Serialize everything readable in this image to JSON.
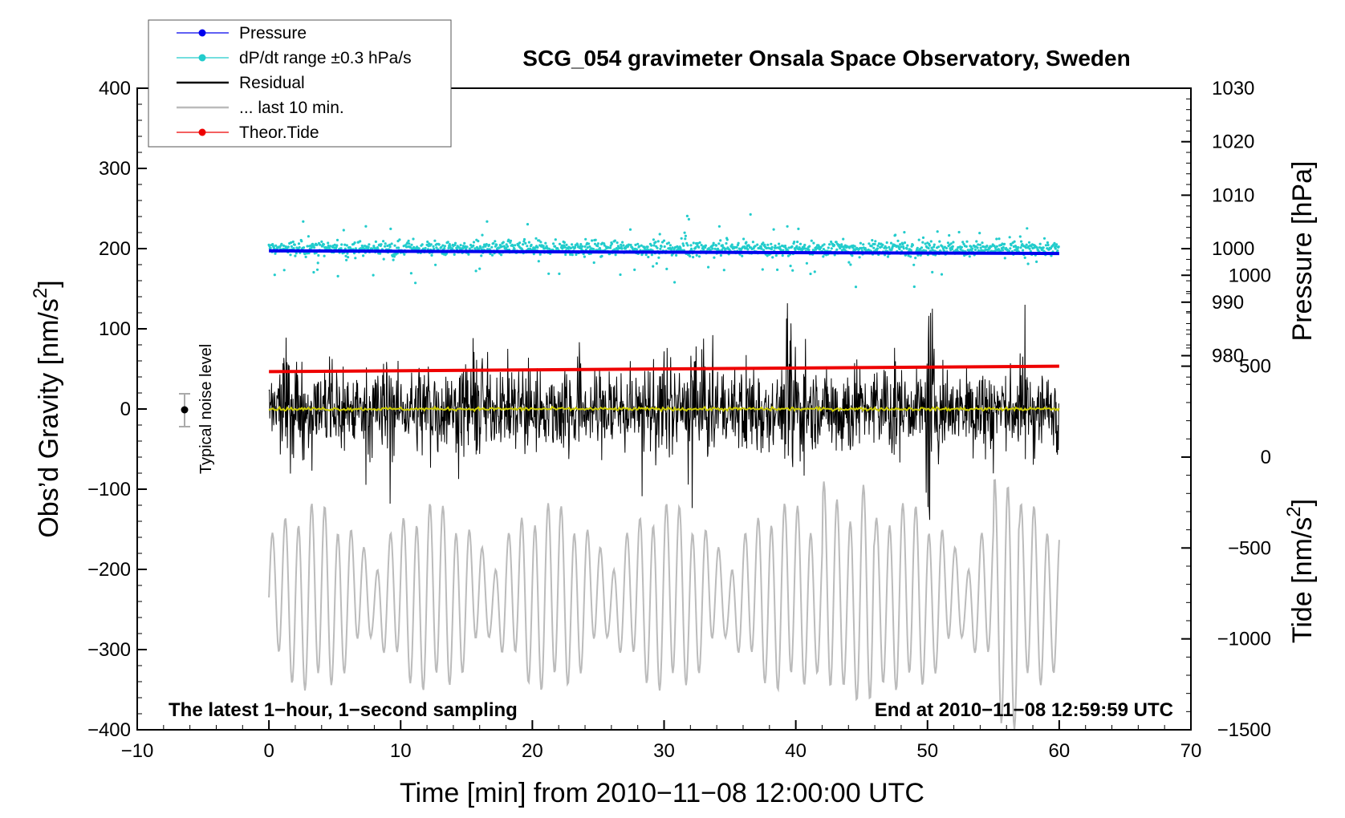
{
  "chart_data": {
    "type": "line",
    "title": "SCG_054 gravimeter Onsala Space Observatory, Sweden",
    "xlabel": "Time [min] from 2010−11−08 12:00:00 UTC",
    "ylabel_left": "Obs’d Gravity [nm/s",
    "ylabel_left_sup": "2",
    "ylabel_left_end": "]",
    "ylabel_right_top": "Pressure [hPa]",
    "ylabel_right_bottom": "Tide [nm/s",
    "ylabel_right_bottom_sup": "2",
    "ylabel_right_bottom_end": "]",
    "xlim": [
      -10,
      70
    ],
    "ylim": [
      -400,
      400
    ],
    "pressure_axis": {
      "lim": [
        970,
        1030
      ],
      "ticks": [
        980,
        990,
        1000,
        1010,
        1020,
        1030
      ]
    },
    "tide_axis": {
      "lim": [
        -1500,
        1500
      ],
      "ticks": [
        -1500,
        -1000,
        -500,
        0,
        500,
        1000
      ]
    },
    "x_ticks": [
      -10,
      0,
      10,
      20,
      30,
      40,
      50,
      60,
      70
    ],
    "x_tick_labels": [
      "−10",
      "0",
      "10",
      "20",
      "30",
      "40",
      "50",
      "60",
      "70"
    ],
    "y_ticks": [
      -400,
      -300,
      -200,
      -100,
      0,
      100,
      200,
      300,
      400
    ],
    "y_tick_labels": [
      "−400",
      "−300",
      "−200",
      "−100",
      "0",
      "100",
      "200",
      "300",
      "400"
    ],
    "series": [
      {
        "name": "Pressure",
        "color": "#0000ee",
        "axis": "pressure",
        "x": [
          0,
          60
        ],
        "values": [
          999.6,
          999.1
        ]
      },
      {
        "name": "dP/dt range ±0.3 hPa/s",
        "color": "#22cccc",
        "axis": "gravity",
        "center": 200,
        "spread": 30
      },
      {
        "name": "Residual",
        "color": "#000000",
        "axis": "gravity",
        "center": 0,
        "amplitude_range": [
          -155,
          155
        ]
      },
      {
        "name": "... last 10 min.",
        "color": "#bbbbbb",
        "axis": "gravity",
        "center": -235,
        "amplitude_range": [
          -400,
          -65
        ]
      },
      {
        "name": "Theor.Tide",
        "color": "#ee0000",
        "axis": "tide",
        "x": [
          0,
          60
        ],
        "values": [
          470,
          500
        ]
      }
    ],
    "annotations": {
      "noise_label": "Typical noise level",
      "noise_point": {
        "x": -7,
        "y": 0,
        "err": 20
      },
      "bottom_left": "The latest 1−hour, 1−second sampling",
      "bottom_right": "End at 2010−11−08 12:59:59 UTC"
    }
  },
  "legend": [
    {
      "label": "Pressure",
      "color": "#0000ee",
      "marker": true
    },
    {
      "label": "dP/dt range ±0.3 hPa/s",
      "color": "#22cccc",
      "marker": true
    },
    {
      "label": "Residual",
      "color": "#000000",
      "marker": false
    },
    {
      "label": "... last 10 min.",
      "color": "#bbbbbb",
      "marker": false
    },
    {
      "label": "Theor.Tide",
      "color": "#ee0000",
      "marker": true
    }
  ]
}
